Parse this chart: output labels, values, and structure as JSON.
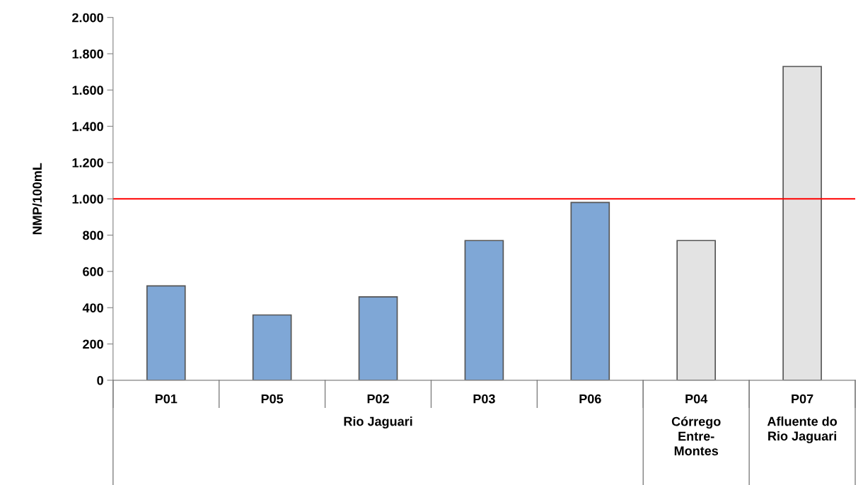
{
  "chart_data": {
    "type": "bar",
    "categories": [
      "P01",
      "P05",
      "P02",
      "P03",
      "P06",
      "P04",
      "P07"
    ],
    "values": [
      520,
      360,
      460,
      770,
      980,
      770,
      1730
    ],
    "colors": [
      "#7fa7d6",
      "#7fa7d6",
      "#7fa7d6",
      "#7fa7d6",
      "#7fa7d6",
      "#e3e3e3",
      "#e3e3e3"
    ],
    "ylabel": "NMP/100mL",
    "ylim": [
      0,
      2000
    ],
    "yticks": [
      0,
      200,
      400,
      600,
      800,
      {
        "value": 1000,
        "label": "1.000"
      },
      {
        "value": 1200,
        "label": "1.200"
      },
      {
        "value": 1400,
        "label": "1.400"
      },
      {
        "value": 1600,
        "label": "1.600"
      },
      {
        "value": 1800,
        "label": "1.800"
      },
      {
        "value": 2000,
        "label": "2.000"
      }
    ],
    "ref_lines": [
      {
        "axis": "y",
        "value": 1000,
        "color": "#ff0000"
      }
    ],
    "annotations": [
      "Rio Jaguari",
      "Córrego\nEntre-\nMontes",
      "Afluente do\nRio Jaguari"
    ],
    "grid": false,
    "legend": false
  }
}
